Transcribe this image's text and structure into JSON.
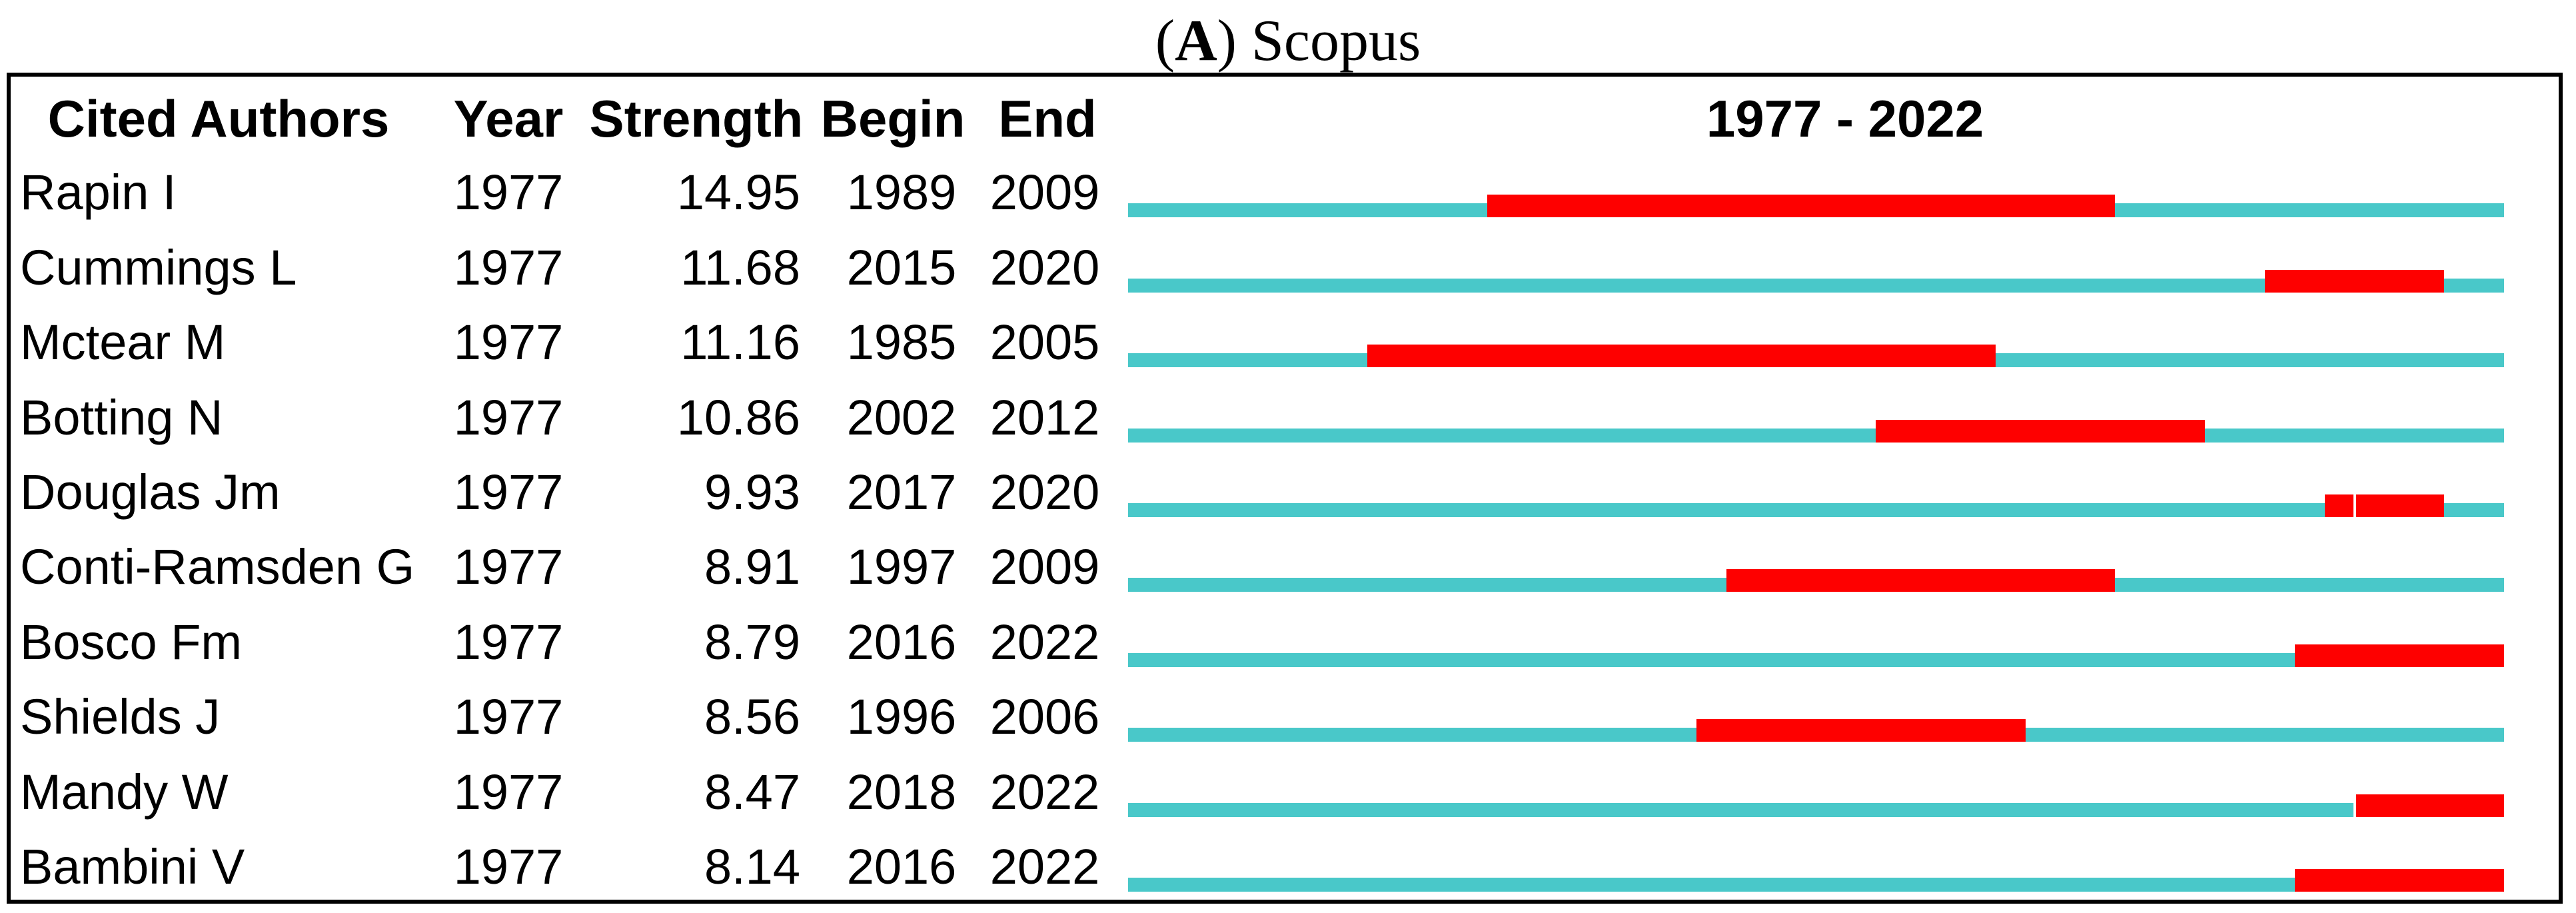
{
  "title": {
    "open": "(",
    "letter": "A",
    "rest": ") Scopus"
  },
  "chart_data": {
    "type": "table",
    "subtype": "citation-burst-timeline",
    "title": "(A) Scopus",
    "columns": [
      "Cited Authors",
      "Year",
      "Strength",
      "Begin",
      "End"
    ],
    "timeline_header": "1977 - 2022",
    "axis_range": [
      1977,
      2022
    ],
    "legend_position": "none",
    "grid": false,
    "colors": {
      "track": "#49C8C9",
      "burst": "#FE0000",
      "text": "#000000",
      "border": "#000000"
    },
    "rows": [
      {
        "author": "Rapin I",
        "year": "1977",
        "strength": "14.95",
        "begin": 1989,
        "end": 2009
      },
      {
        "author": "Cummings L",
        "year": "1977",
        "strength": "11.68",
        "begin": 2015,
        "end": 2020
      },
      {
        "author": "Mctear M",
        "year": "1977",
        "strength": "11.16",
        "begin": 1985,
        "end": 2005
      },
      {
        "author": "Botting N",
        "year": "1977",
        "strength": "10.86",
        "begin": 2002,
        "end": 2012
      },
      {
        "author": "Douglas Jm",
        "year": "1977",
        "strength": "9.93",
        "begin": 2017,
        "end": 2020,
        "seam_year": 2018
      },
      {
        "author": "Conti-Ramsden G",
        "year": "1977",
        "strength": "8.91",
        "begin": 1997,
        "end": 2009
      },
      {
        "author": "Bosco Fm",
        "year": "1977",
        "strength": "8.79",
        "begin": 2016,
        "end": 2022
      },
      {
        "author": "Shields J",
        "year": "1977",
        "strength": "8.56",
        "begin": 1996,
        "end": 2006
      },
      {
        "author": "Mandy W",
        "year": "1977",
        "strength": "8.47",
        "begin": 2018,
        "end": 2022,
        "seam_year": 2018
      },
      {
        "author": "Bambini V",
        "year": "1977",
        "strength": "8.14",
        "begin": 2016,
        "end": 2022
      }
    ]
  }
}
